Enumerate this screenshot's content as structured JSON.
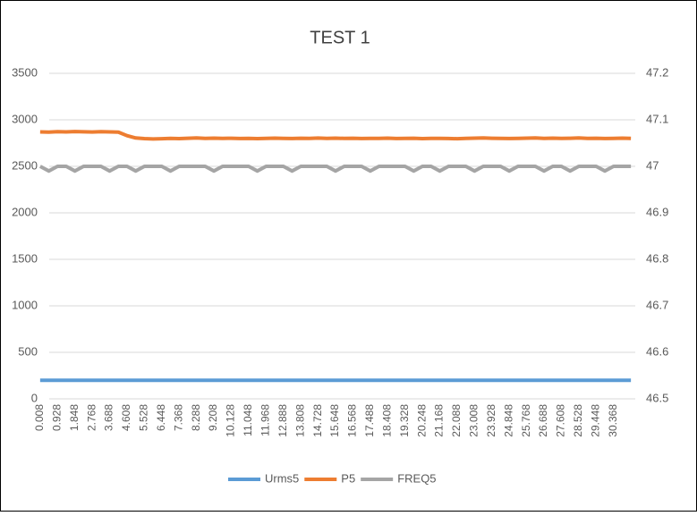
{
  "chart_data": {
    "type": "line",
    "title": "TEST 1",
    "categories": [
      "0.008",
      null,
      "0.928",
      null,
      "1.848",
      null,
      "2.768",
      null,
      "3.688",
      null,
      "4.608",
      null,
      "5.528",
      null,
      "6.448",
      null,
      "7.368",
      null,
      "8.288",
      null,
      "9.208",
      null,
      "10.128",
      null,
      "11.048",
      null,
      "11.968",
      null,
      "12.888",
      null,
      "13.808",
      null,
      "14.728",
      null,
      "15.648",
      null,
      "16.568",
      null,
      "17.488",
      null,
      "18.408",
      null,
      "19.328",
      null,
      "20.248",
      null,
      "21.168",
      null,
      "22.088",
      null,
      "23.008",
      null,
      "23.928",
      null,
      "24.848",
      null,
      "25.768",
      null,
      "26.688",
      null,
      "27.608",
      null,
      "28.528",
      null,
      "29.448",
      null,
      "30.368",
      null,
      null
    ],
    "series": [
      {
        "name": "Urms5",
        "color": "#5b9bd5",
        "values": [
          200,
          200,
          200,
          200,
          200,
          200,
          200,
          200,
          200,
          200,
          200,
          200,
          200,
          200,
          200,
          200,
          200,
          200,
          200,
          200,
          200,
          200,
          200,
          200,
          200,
          200,
          200,
          200,
          200,
          200,
          200,
          200,
          200,
          200,
          200,
          200,
          200,
          200,
          200,
          200,
          200,
          200,
          200,
          200,
          200,
          200,
          200,
          200,
          200,
          200,
          200,
          200,
          200,
          200,
          200,
          200,
          200,
          200,
          200,
          200,
          200,
          200,
          200,
          200,
          200,
          200,
          200,
          200,
          200
        ]
      },
      {
        "name": "P5",
        "color": "#ed7d31",
        "values": [
          2870,
          2868,
          2872,
          2870,
          2874,
          2871,
          2869,
          2872,
          2870,
          2868,
          2830,
          2805,
          2798,
          2795,
          2797,
          2800,
          2798,
          2802,
          2805,
          2801,
          2803,
          2800,
          2802,
          2799,
          2801,
          2798,
          2800,
          2803,
          2801,
          2799,
          2802,
          2800,
          2804,
          2801,
          2803,
          2800,
          2802,
          2799,
          2801,
          2800,
          2803,
          2799,
          2800,
          2802,
          2798,
          2800,
          2801,
          2799,
          2797,
          2800,
          2803,
          2805,
          2802,
          2800,
          2799,
          2801,
          2803,
          2805,
          2801,
          2803,
          2800,
          2802,
          2805,
          2800,
          2802,
          2799,
          2801,
          2803,
          2800
        ]
      },
      {
        "name": "FREQ5",
        "color": "#a5a5a5",
        "axis": "y2",
        "values": [
          47,
          46.99,
          47,
          47,
          46.99,
          47,
          47,
          47,
          46.99,
          47,
          47,
          46.99,
          47,
          47,
          47,
          46.99,
          47,
          47,
          47,
          47,
          46.99,
          47,
          47,
          47,
          47,
          46.99,
          47,
          47,
          47,
          46.99,
          47,
          47,
          47,
          47,
          46.99,
          47,
          47,
          47,
          46.99,
          47,
          47,
          47,
          47,
          46.99,
          47,
          47,
          46.99,
          47,
          47,
          47,
          46.99,
          47,
          47,
          47,
          46.99,
          47,
          47,
          47,
          46.99,
          47,
          47,
          46.99,
          47,
          47,
          47,
          46.99,
          47,
          47,
          47
        ]
      }
    ],
    "ylim": [
      0,
      3500
    ],
    "yticks": [
      0,
      500,
      1000,
      1500,
      2000,
      2500,
      3000,
      3500
    ],
    "y2lim": [
      46.5,
      47.2
    ],
    "y2ticks": [
      46.5,
      46.6,
      46.7,
      46.8,
      46.9,
      47,
      47.1,
      47.2
    ],
    "grid": true,
    "legend": "bottom"
  }
}
